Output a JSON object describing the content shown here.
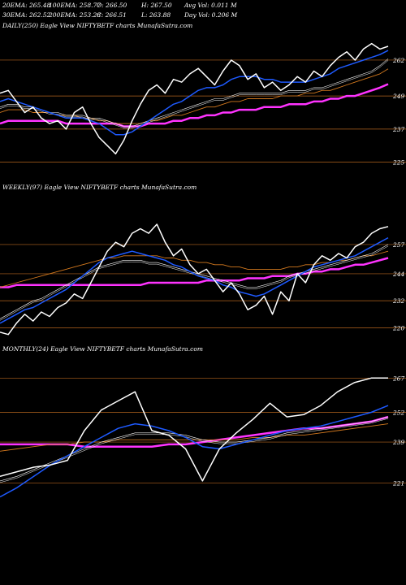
{
  "header": {
    "row1": [
      "20EMA: 265.48",
      "100EMA: 258.77",
      "O: 266.50",
      "H: 267.50",
      "Avg Vol: 0.011 M"
    ],
    "row2": [
      "30EMA: 262.52",
      "200EMA: 253.28",
      "C: 266.51",
      "L: 263.88",
      "Day Vol: 0.206  M"
    ]
  },
  "colors": {
    "background": "#000000",
    "price": "#ffffff",
    "ema_fast": "#1e5aff",
    "ema_slow": "#ff33ff",
    "ema_orange": "#d2781e",
    "level_line": "#b4641e"
  },
  "chart_data": [
    {
      "type": "line",
      "title": "DAILY(250) Eagle  View  NIFTYBETF charts MunafaSutra.com",
      "levels": [
        262,
        249,
        237,
        225
      ],
      "ylim": [
        219,
        272
      ],
      "x": [
        0,
        1,
        2,
        3,
        4,
        5,
        6,
        7,
        8,
        9,
        10,
        11,
        12,
        13,
        14,
        15,
        16,
        17,
        18,
        19,
        20,
        21,
        22,
        23,
        24,
        25,
        26,
        27,
        28,
        29,
        30,
        31,
        32,
        33,
        34,
        35,
        36,
        37,
        38,
        39,
        40,
        41,
        42,
        43,
        44,
        45,
        46,
        47
      ],
      "series": [
        {
          "values": [
            250,
            251,
            247,
            243,
            245,
            241,
            239,
            240,
            237,
            243,
            245,
            239,
            234,
            231,
            228,
            233,
            240,
            246,
            251,
            253,
            250,
            255,
            254,
            257,
            259,
            256,
            253,
            258,
            262,
            260,
            255,
            257,
            252,
            254,
            251,
            253,
            256,
            254,
            258,
            256,
            260,
            263,
            265,
            262,
            266,
            268,
            266,
            267
          ]
        },
        {
          "values": [
            247,
            248,
            247,
            246,
            245,
            244,
            243,
            242,
            241,
            241,
            241,
            240,
            239,
            237,
            235,
            235,
            236,
            238,
            240,
            242,
            244,
            246,
            247,
            249,
            251,
            252,
            252,
            253,
            255,
            256,
            256,
            256,
            255,
            255,
            254,
            254,
            254,
            254,
            255,
            256,
            257,
            259,
            260,
            261,
            262,
            263,
            264,
            265.5
          ]
        },
        {
          "values": [
            245,
            246,
            246,
            245,
            245,
            244,
            243,
            243,
            242,
            242,
            242,
            241,
            241,
            240,
            239,
            238,
            238,
            239,
            240,
            241,
            242,
            243,
            244,
            245,
            246,
            247,
            248,
            248,
            249,
            250,
            250,
            250,
            250,
            250,
            250,
            251,
            251,
            251,
            252,
            252,
            253,
            254,
            255,
            256,
            257,
            258,
            260,
            262.5
          ]
        },
        {
          "values": [
            243,
            244,
            244,
            244,
            243,
            243,
            243,
            242,
            242,
            242,
            241,
            241,
            240,
            240,
            239,
            239,
            239,
            239,
            240,
            240,
            241,
            242,
            242,
            243,
            244,
            245,
            245,
            246,
            247,
            247,
            248,
            248,
            248,
            248,
            249,
            249,
            249,
            250,
            250,
            251,
            251,
            252,
            253,
            254,
            255,
            256,
            257,
            258.8
          ]
        },
        {
          "values": [
            239,
            240,
            240,
            240,
            240,
            240,
            240,
            240,
            239,
            239,
            239,
            239,
            239,
            239,
            239,
            238,
            238,
            238,
            239,
            239,
            239,
            240,
            240,
            241,
            241,
            242,
            242,
            243,
            243,
            244,
            244,
            244,
            245,
            245,
            245,
            246,
            246,
            246,
            247,
            247,
            248,
            248,
            249,
            249,
            250,
            251,
            252,
            253.3
          ]
        }
      ]
    },
    {
      "type": "line",
      "title": "WEEKLY(97) Eagle  View  NIFTYBETF charts MunafaSutra.com",
      "levels": [
        257,
        244,
        232,
        220
      ],
      "ylim": [
        214,
        279
      ],
      "x": [
        0,
        1,
        2,
        3,
        4,
        5,
        6,
        7,
        8,
        9,
        10,
        11,
        12,
        13,
        14,
        15,
        16,
        17,
        18,
        19,
        20,
        21,
        22,
        23,
        24,
        25,
        26,
        27,
        28,
        29,
        30,
        31,
        32,
        33,
        34,
        35,
        36,
        37,
        38,
        39,
        40,
        41,
        42,
        43,
        44,
        45,
        46,
        47
      ],
      "series": [
        {
          "values": [
            218,
            217,
            222,
            226,
            223,
            227,
            225,
            229,
            231,
            235,
            233,
            240,
            247,
            254,
            258,
            256,
            262,
            264,
            262,
            266,
            258,
            252,
            255,
            248,
            244,
            246,
            241,
            236,
            240,
            235,
            228,
            230,
            234,
            226,
            236,
            232,
            244,
            240,
            248,
            252,
            250,
            253,
            251,
            256,
            258,
            262,
            264,
            265
          ]
        },
        {
          "values": [
            222,
            224,
            226,
            228,
            229,
            231,
            233,
            235,
            237,
            240,
            243,
            246,
            249,
            251,
            252,
            253,
            254,
            253,
            252,
            251,
            250,
            248,
            247,
            245,
            243,
            242,
            241,
            239,
            238,
            236,
            235,
            234,
            235,
            237,
            239,
            241,
            243,
            245,
            247,
            248,
            249,
            250,
            251,
            252,
            254,
            256,
            258,
            260
          ]
        },
        {
          "values": [
            224,
            226,
            228,
            230,
            232,
            233,
            235,
            237,
            239,
            241,
            243,
            245,
            247,
            248,
            249,
            250,
            250,
            250,
            249,
            249,
            248,
            247,
            246,
            245,
            244,
            243,
            242,
            241,
            240,
            239,
            238,
            238,
            239,
            240,
            241,
            243,
            244,
            245,
            246,
            247,
            248,
            249,
            250,
            251,
            252,
            253,
            255,
            257
          ]
        },
        {
          "values": [
            238,
            239,
            240,
            241,
            242,
            243,
            244,
            245,
            246,
            247,
            248,
            249,
            250,
            251,
            251,
            252,
            252,
            252,
            252,
            252,
            251,
            251,
            250,
            250,
            249,
            249,
            248,
            248,
            247,
            247,
            246,
            246,
            246,
            246,
            246,
            247,
            247,
            248,
            248,
            249,
            249,
            250,
            250,
            251,
            252,
            252,
            253,
            254
          ]
        },
        {
          "values": [
            238,
            238,
            239,
            239,
            239,
            239,
            239,
            239,
            239,
            239,
            239,
            239,
            239,
            239,
            239,
            239,
            239,
            239,
            240,
            240,
            240,
            240,
            240,
            240,
            240,
            241,
            241,
            241,
            241,
            241,
            242,
            242,
            242,
            243,
            243,
            243,
            244,
            244,
            245,
            245,
            246,
            246,
            247,
            248,
            248,
            249,
            250,
            251
          ]
        }
      ]
    },
    {
      "type": "line",
      "title": "MONTHLY(24) Eagle  View  NIFTYBETF charts MunafaSutra.com",
      "levels": [
        267,
        252,
        239,
        221
      ],
      "ylim": [
        212,
        276
      ],
      "x": [
        0,
        1,
        2,
        3,
        4,
        5,
        6,
        7,
        8,
        9,
        10,
        11,
        12,
        13,
        14,
        15,
        16,
        17,
        18,
        19,
        20,
        21,
        22,
        23
      ],
      "series": [
        {
          "values": [
            224,
            226,
            228,
            229,
            231,
            244,
            253,
            257,
            261,
            244,
            242,
            236,
            222,
            236,
            243,
            249,
            256,
            250,
            251,
            255,
            261,
            265,
            267,
            267
          ]
        },
        {
          "values": [
            215,
            219,
            224,
            229,
            233,
            237,
            241,
            245,
            247,
            246,
            244,
            241,
            237,
            236,
            238,
            240,
            242,
            244,
            245,
            246,
            248,
            250,
            252,
            255
          ]
        },
        {
          "values": [
            222,
            224,
            227,
            230,
            233,
            236,
            239,
            241,
            243,
            243,
            243,
            242,
            240,
            239,
            239,
            240,
            241,
            243,
            244,
            245,
            246,
            247,
            248,
            250
          ]
        },
        {
          "values": [
            235,
            236,
            237,
            238,
            238,
            239,
            239,
            240,
            240,
            240,
            240,
            240,
            240,
            240,
            240,
            241,
            241,
            242,
            242,
            243,
            244,
            245,
            246,
            247
          ]
        },
        {
          "values": [
            238,
            238,
            238,
            238,
            238,
            237,
            237,
            237,
            237,
            237,
            238,
            238,
            239,
            240,
            241,
            242,
            243,
            244,
            245,
            245,
            246,
            247,
            248,
            250
          ]
        }
      ]
    }
  ]
}
